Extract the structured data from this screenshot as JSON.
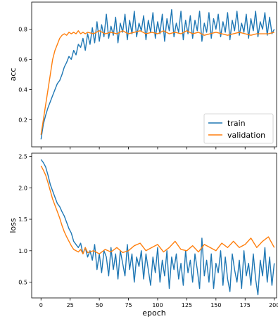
{
  "chart_data": [
    {
      "type": "line",
      "ylabel": "acc",
      "xlabel": "",
      "xlim": [
        -8,
        202
      ],
      "ylim": [
        0.02,
        0.98
      ],
      "xticks": [
        0,
        25,
        50,
        75,
        100,
        125,
        150,
        175,
        200
      ],
      "yticks": [
        0.2,
        0.4,
        0.6,
        0.8
      ],
      "ytick_labels": [
        "0.2",
        "0.4",
        "0.6",
        "0.8"
      ],
      "show_xtick_labels": false,
      "legend": "lower-right",
      "series": [
        {
          "name": "train",
          "color": "#1f77b4",
          "x": [
            0,
            2,
            4,
            6,
            8,
            10,
            12,
            14,
            16,
            18,
            20,
            22,
            24,
            26,
            28,
            30,
            32,
            34,
            36,
            38,
            40,
            42,
            44,
            46,
            48,
            50,
            52,
            54,
            56,
            58,
            60,
            62,
            64,
            66,
            68,
            70,
            72,
            74,
            76,
            78,
            80,
            82,
            84,
            86,
            88,
            90,
            92,
            94,
            96,
            98,
            100,
            102,
            104,
            106,
            108,
            110,
            112,
            114,
            116,
            118,
            120,
            122,
            124,
            126,
            128,
            130,
            132,
            134,
            136,
            138,
            140,
            142,
            144,
            146,
            148,
            150,
            152,
            154,
            156,
            158,
            160,
            162,
            164,
            166,
            168,
            170,
            172,
            174,
            176,
            178,
            180,
            182,
            184,
            186,
            188,
            190,
            192,
            194,
            196,
            198,
            200
          ],
          "values": [
            0.07,
            0.17,
            0.23,
            0.28,
            0.32,
            0.36,
            0.4,
            0.44,
            0.46,
            0.5,
            0.55,
            0.58,
            0.62,
            0.6,
            0.66,
            0.63,
            0.7,
            0.68,
            0.74,
            0.66,
            0.77,
            0.7,
            0.81,
            0.71,
            0.85,
            0.72,
            0.83,
            0.75,
            0.9,
            0.74,
            0.82,
            0.76,
            0.88,
            0.71,
            0.84,
            0.78,
            0.9,
            0.73,
            0.86,
            0.77,
            0.92,
            0.75,
            0.84,
            0.79,
            0.89,
            0.73,
            0.86,
            0.78,
            0.91,
            0.74,
            0.85,
            0.77,
            0.9,
            0.72,
            0.87,
            0.79,
            0.93,
            0.75,
            0.84,
            0.78,
            0.92,
            0.73,
            0.86,
            0.77,
            0.89,
            0.74,
            0.86,
            0.79,
            0.92,
            0.72,
            0.84,
            0.78,
            0.91,
            0.74,
            0.87,
            0.8,
            0.9,
            0.75,
            0.85,
            0.78,
            0.91,
            0.73,
            0.86,
            0.79,
            0.92,
            0.76,
            0.84,
            0.78,
            0.9,
            0.74,
            0.87,
            0.79,
            0.92,
            0.75,
            0.85,
            0.8,
            0.91,
            0.76,
            0.88,
            0.77,
            0.8
          ]
        },
        {
          "name": "validation",
          "color": "#ff7f0e",
          "x": [
            0,
            2,
            4,
            6,
            8,
            10,
            12,
            14,
            16,
            18,
            20,
            22,
            24,
            26,
            28,
            30,
            32,
            34,
            36,
            38,
            40,
            45,
            50,
            55,
            60,
            65,
            70,
            75,
            80,
            85,
            90,
            95,
            100,
            105,
            110,
            115,
            120,
            125,
            130,
            135,
            140,
            145,
            150,
            155,
            160,
            165,
            170,
            175,
            180,
            185,
            190,
            195,
            200
          ],
          "values": [
            0.1,
            0.2,
            0.3,
            0.4,
            0.5,
            0.6,
            0.66,
            0.7,
            0.74,
            0.76,
            0.77,
            0.76,
            0.78,
            0.77,
            0.78,
            0.77,
            0.79,
            0.77,
            0.78,
            0.77,
            0.78,
            0.77,
            0.79,
            0.77,
            0.78,
            0.77,
            0.79,
            0.77,
            0.78,
            0.79,
            0.77,
            0.78,
            0.77,
            0.79,
            0.77,
            0.78,
            0.77,
            0.79,
            0.77,
            0.78,
            0.76,
            0.77,
            0.78,
            0.77,
            0.76,
            0.77,
            0.78,
            0.77,
            0.76,
            0.77,
            0.77,
            0.77,
            0.78
          ]
        }
      ]
    },
    {
      "type": "line",
      "ylabel": "loss",
      "xlabel": "epoch",
      "xlim": [
        -8,
        202
      ],
      "ylim": [
        0.25,
        2.55
      ],
      "xticks": [
        0,
        25,
        50,
        75,
        100,
        125,
        150,
        175,
        200
      ],
      "xtick_labels": [
        "0",
        "25",
        "50",
        "75",
        "100",
        "125",
        "150",
        "175",
        "200"
      ],
      "yticks": [
        0.5,
        1.0,
        1.5,
        2.0,
        2.5
      ],
      "ytick_labels": [
        "0.5",
        "1.0",
        "1.5",
        "2.0",
        "2.5"
      ],
      "show_xtick_labels": true,
      "series": [
        {
          "name": "train",
          "color": "#1f77b4",
          "x": [
            0,
            2,
            4,
            6,
            8,
            10,
            12,
            14,
            16,
            18,
            20,
            22,
            24,
            26,
            28,
            30,
            32,
            34,
            36,
            38,
            40,
            42,
            44,
            46,
            48,
            50,
            52,
            54,
            56,
            58,
            60,
            62,
            64,
            66,
            68,
            70,
            72,
            74,
            76,
            78,
            80,
            82,
            84,
            86,
            88,
            90,
            92,
            94,
            96,
            98,
            100,
            102,
            104,
            106,
            108,
            110,
            112,
            114,
            116,
            118,
            120,
            122,
            124,
            126,
            128,
            130,
            132,
            134,
            136,
            138,
            140,
            142,
            144,
            146,
            148,
            150,
            152,
            154,
            156,
            158,
            160,
            162,
            164,
            166,
            168,
            170,
            172,
            174,
            176,
            178,
            180,
            182,
            184,
            186,
            188,
            190,
            192,
            194,
            196,
            198,
            200
          ],
          "values": [
            2.45,
            2.4,
            2.33,
            2.2,
            2.05,
            1.95,
            1.85,
            1.75,
            1.7,
            1.62,
            1.55,
            1.45,
            1.35,
            1.28,
            1.15,
            1.1,
            1.05,
            1.12,
            0.95,
            1.05,
            0.9,
            1.0,
            0.85,
            1.1,
            0.7,
            0.95,
            0.65,
            1.0,
            0.9,
            0.6,
            1.05,
            0.7,
            0.95,
            0.55,
            1.0,
            0.8,
            0.6,
            1.1,
            0.7,
            0.95,
            0.5,
            0.9,
            0.75,
            1.0,
            0.55,
            0.95,
            0.7,
            0.45,
            0.9,
            0.65,
            1.05,
            0.5,
            0.85,
            0.6,
            1.0,
            0.4,
            0.9,
            0.7,
            0.95,
            0.55,
            0.8,
            0.45,
            1.0,
            0.65,
            0.85,
            0.5,
            0.95,
            0.7,
            0.4,
            1.2,
            0.6,
            0.85,
            0.5,
            0.95,
            0.4,
            0.8,
            0.65,
            1.0,
            0.45,
            0.9,
            0.55,
            0.35,
            0.95,
            0.7,
            0.5,
            0.85,
            0.4,
            1.0,
            0.6,
            0.8,
            0.45,
            0.95,
            0.55,
            0.3,
            0.85,
            0.6,
            1.05,
            0.5,
            0.9,
            0.45,
            0.8
          ]
        },
        {
          "name": "validation",
          "color": "#ff7f0e",
          "x": [
            0,
            2,
            4,
            6,
            8,
            10,
            12,
            14,
            16,
            18,
            20,
            22,
            24,
            26,
            28,
            30,
            32,
            34,
            36,
            38,
            40,
            45,
            50,
            55,
            60,
            65,
            70,
            75,
            80,
            85,
            90,
            95,
            100,
            105,
            110,
            115,
            120,
            125,
            130,
            135,
            140,
            145,
            150,
            155,
            160,
            165,
            170,
            175,
            180,
            185,
            190,
            195,
            200
          ],
          "values": [
            2.35,
            2.28,
            2.2,
            2.08,
            1.95,
            1.82,
            1.72,
            1.62,
            1.52,
            1.4,
            1.3,
            1.22,
            1.15,
            1.08,
            1.02,
            1.0,
            0.98,
            1.02,
            0.95,
            1.05,
            0.97,
            1.0,
            0.95,
            1.02,
            0.98,
            1.05,
            0.97,
            1.0,
            1.08,
            1.12,
            1.0,
            1.05,
            1.1,
            0.98,
            1.05,
            1.15,
            1.02,
            1.0,
            1.08,
            0.98,
            1.1,
            1.05,
            1.0,
            1.12,
            1.05,
            1.15,
            1.05,
            1.1,
            1.2,
            1.05,
            1.15,
            1.22,
            1.05
          ]
        }
      ]
    }
  ]
}
